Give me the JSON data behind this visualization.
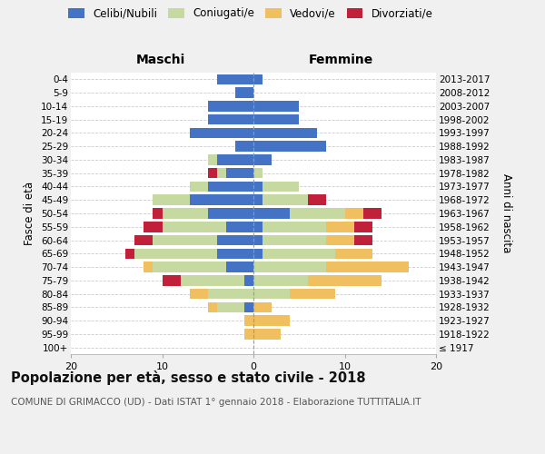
{
  "age_groups": [
    "100+",
    "95-99",
    "90-94",
    "85-89",
    "80-84",
    "75-79",
    "70-74",
    "65-69",
    "60-64",
    "55-59",
    "50-54",
    "45-49",
    "40-44",
    "35-39",
    "30-34",
    "25-29",
    "20-24",
    "15-19",
    "10-14",
    "5-9",
    "0-4"
  ],
  "birth_years": [
    "≤ 1917",
    "1918-1922",
    "1923-1927",
    "1928-1932",
    "1933-1937",
    "1938-1942",
    "1943-1947",
    "1948-1952",
    "1953-1957",
    "1958-1962",
    "1963-1967",
    "1968-1972",
    "1973-1977",
    "1978-1982",
    "1983-1987",
    "1988-1992",
    "1993-1997",
    "1998-2002",
    "2003-2007",
    "2008-2012",
    "2013-2017"
  ],
  "colors": {
    "celibi": "#4472c4",
    "coniugati": "#c5d9a0",
    "vedovi": "#f0c060",
    "divorziati": "#c0203a"
  },
  "males": {
    "celibi": [
      0,
      0,
      0,
      1,
      0,
      1,
      3,
      4,
      4,
      3,
      5,
      7,
      5,
      3,
      4,
      2,
      7,
      5,
      5,
      2,
      4
    ],
    "coniugati": [
      0,
      0,
      0,
      3,
      5,
      7,
      8,
      9,
      7,
      7,
      5,
      4,
      2,
      1,
      1,
      0,
      0,
      0,
      0,
      0,
      0
    ],
    "vedovi": [
      0,
      1,
      1,
      1,
      2,
      0,
      1,
      0,
      0,
      0,
      0,
      0,
      0,
      0,
      0,
      0,
      0,
      0,
      0,
      0,
      0
    ],
    "divorziati": [
      0,
      0,
      0,
      0,
      0,
      2,
      0,
      1,
      2,
      2,
      1,
      0,
      0,
      1,
      0,
      0,
      0,
      0,
      0,
      0,
      0
    ]
  },
  "females": {
    "celibi": [
      0,
      0,
      0,
      0,
      0,
      0,
      0,
      1,
      1,
      1,
      4,
      1,
      1,
      0,
      2,
      8,
      7,
      5,
      5,
      0,
      1
    ],
    "coniugati": [
      0,
      0,
      0,
      0,
      4,
      6,
      8,
      8,
      7,
      7,
      6,
      5,
      4,
      1,
      0,
      0,
      0,
      0,
      0,
      0,
      0
    ],
    "vedovi": [
      0,
      3,
      4,
      2,
      5,
      8,
      9,
      4,
      3,
      3,
      2,
      0,
      0,
      0,
      0,
      0,
      0,
      0,
      0,
      0,
      0
    ],
    "divorziati": [
      0,
      0,
      0,
      0,
      0,
      0,
      0,
      0,
      2,
      2,
      2,
      2,
      0,
      0,
      0,
      0,
      0,
      0,
      0,
      0,
      0
    ]
  },
  "xlim": 20,
  "title": "Popolazione per età, sesso e stato civile - 2018",
  "subtitle": "COMUNE DI GRIMACCO (UD) - Dati ISTAT 1° gennaio 2018 - Elaborazione TUTTITALIA.IT",
  "ylabel_left": "Fasce di età",
  "ylabel_right": "Anni di nascita",
  "xlabel_left": "Maschi",
  "xlabel_right": "Femmine",
  "bg_color": "#f0f0f0",
  "plot_bg_color": "#ffffff"
}
